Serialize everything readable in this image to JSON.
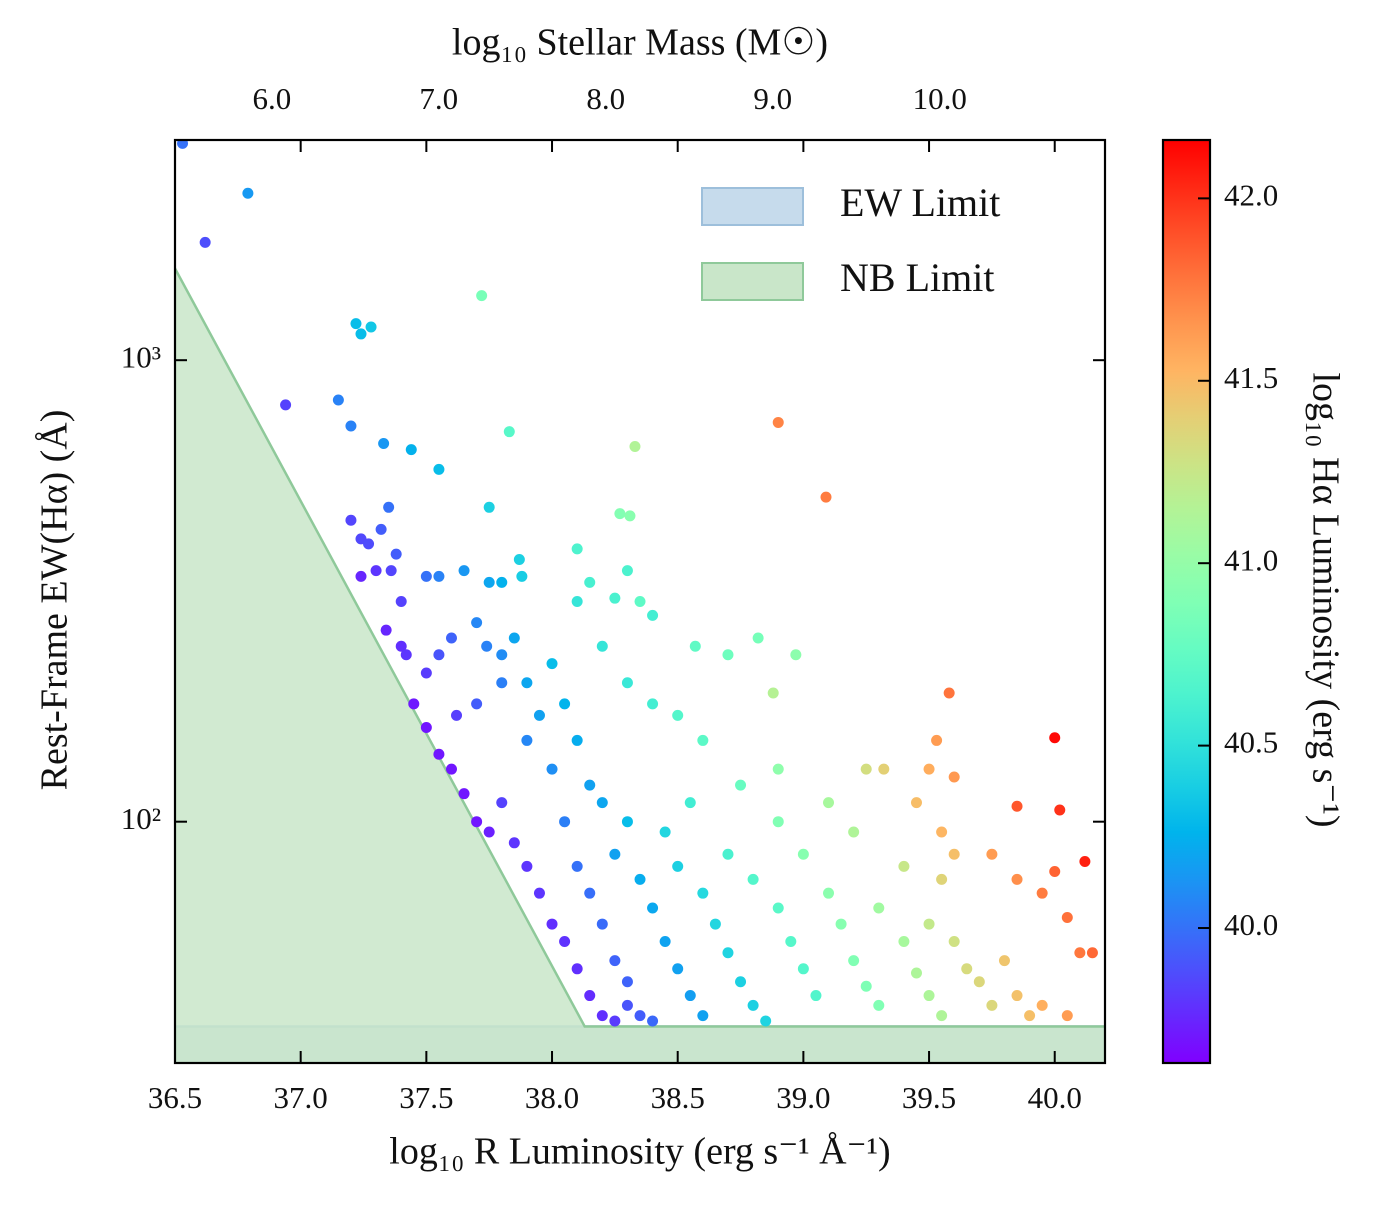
{
  "chart_data": {
    "type": "scatter",
    "title": "log₁₀ Stellar Mass (M☉)",
    "xlabel": "log₁₀ R Luminosity (erg s⁻¹ Å⁻¹)",
    "ylabel": "Rest-Frame EW(Hα) (Å)",
    "xlim": [
      36.5,
      40.2
    ],
    "xticks": [
      36.5,
      {
        "value": 37,
        "label": "37.0"
      },
      37.5,
      {
        "value": 38,
        "label": "38.0"
      },
      38.5,
      {
        "value": 39,
        "label": "39.0"
      },
      39.5,
      {
        "value": 40,
        "label": "40.0"
      }
    ],
    "x2lim": [
      5.42,
      10.99
    ],
    "x2ticks": [
      {
        "value": 6,
        "label": "6.0"
      },
      {
        "value": 7,
        "label": "7.0"
      },
      {
        "value": 8,
        "label": "8.0"
      },
      {
        "value": 9,
        "label": "9.0"
      },
      {
        "value": 10,
        "label": "10.0"
      }
    ],
    "ylim": [
      30,
      3000
    ],
    "yscale": "log",
    "yticks": [
      {
        "value": 100,
        "label": "10²"
      },
      {
        "value": 1000,
        "label": "10³"
      }
    ],
    "grid": false,
    "legend": "upper right",
    "fills": [
      {
        "name": "EW Limit",
        "color": "#c6dbec",
        "edge": "#9dbfdb",
        "x": [
          36.5,
          40.2
        ],
        "y": [
          36,
          36
        ]
      },
      {
        "name": "NB Limit",
        "color": "#c9e6c9",
        "edge": "#8fc99a",
        "x": [
          36.5,
          38.13,
          40.2
        ],
        "y": [
          1580,
          36,
          36
        ]
      }
    ],
    "colormap": "rainbow",
    "colorbar": {
      "label": "log₁₀ Hα Luminosity (erg s⁻¹)",
      "lim": [
        39.63,
        42.16
      ],
      "ticks": [
        {
          "value": 40,
          "label": "40.0"
        },
        40.5,
        {
          "value": 41,
          "label": "41.0"
        },
        41.5,
        {
          "value": 42,
          "label": "42.0"
        }
      ]
    },
    "points": {
      "x": [
        36.53,
        36.62,
        36.79,
        36.94,
        37.22,
        37.24,
        37.28,
        37.15,
        37.2,
        37.33,
        37.44,
        37.55,
        37.72,
        37.83,
        37.75,
        37.2,
        37.24,
        37.27,
        37.32,
        37.35,
        37.38,
        37.24,
        37.3,
        37.36,
        37.4,
        37.34,
        37.4,
        37.42,
        37.5,
        37.55,
        37.65,
        37.75,
        37.8,
        37.87,
        37.88,
        37.6,
        37.7,
        37.74,
        37.8,
        37.85,
        37.55,
        37.5,
        37.45,
        37.5,
        37.55,
        37.6,
        37.62,
        37.7,
        37.8,
        37.65,
        37.7,
        37.75,
        37.8,
        37.85,
        37.9,
        37.95,
        38.0,
        38.05,
        38.1,
        38.15,
        38.2,
        38.25,
        37.95,
        37.9,
        38.0,
        38.05,
        38.1,
        38.15,
        38.2,
        38.25,
        38.3,
        38.3,
        38.35,
        38.4,
        38.1,
        38.15,
        38.2,
        38.3,
        38.25,
        38.35,
        38.4,
        38.45,
        38.5,
        38.55,
        38.6,
        38.5,
        38.45,
        38.55,
        38.6,
        38.65,
        38.7,
        38.75,
        38.8,
        38.85,
        38.7,
        38.8,
        38.9,
        38.95,
        39.0,
        39.05,
        38.9,
        39.0,
        39.1,
        39.15,
        39.2,
        39.25,
        39.3,
        39.3,
        39.4,
        39.45,
        39.5,
        39.55,
        39.5,
        39.6,
        39.65,
        39.7,
        39.75,
        39.8,
        39.85,
        39.9,
        39.95,
        40.05,
        39.4,
        39.55,
        39.6,
        39.75,
        39.85,
        39.95,
        40.0,
        40.05,
        40.1,
        40.15,
        39.85,
        40.02,
        40.12,
        40.0,
        39.53,
        39.58,
        39.5,
        39.6,
        39.45,
        39.55,
        39.32,
        39.25,
        39.1,
        39.2,
        38.9,
        38.75,
        38.6,
        38.5,
        38.4,
        38.3,
        38.2,
        38.1,
        38.3,
        38.4,
        38.57,
        38.7,
        38.82,
        38.97,
        38.88,
        38.9,
        39.09,
        38.33,
        38.27,
        38.31,
        38.1,
        38.15,
        38.25,
        38.35,
        37.9,
        38.0,
        38.05
      ],
      "y": [
        2950,
        1800,
        2300,
        800,
        1200,
        1140,
        1180,
        820,
        720,
        660,
        640,
        580,
        1380,
        700,
        480,
        450,
        410,
        400,
        430,
        480,
        380,
        340,
        350,
        350,
        300,
        260,
        240,
        230,
        340,
        340,
        350,
        330,
        330,
        370,
        340,
        250,
        270,
        240,
        230,
        250,
        230,
        210,
        180,
        160,
        140,
        130,
        170,
        180,
        200,
        115,
        100,
        95,
        110,
        90,
        80,
        70,
        60,
        55,
        48,
        42,
        38,
        37,
        170,
        150,
        130,
        100,
        80,
        70,
        60,
        50,
        45,
        40,
        38,
        37,
        150,
        120,
        110,
        100,
        85,
        75,
        65,
        55,
        48,
        42,
        38,
        80,
        95,
        110,
        70,
        60,
        52,
        45,
        40,
        37,
        85,
        75,
        65,
        55,
        48,
        42,
        100,
        85,
        70,
        60,
        50,
        44,
        40,
        65,
        55,
        47,
        42,
        38,
        60,
        55,
        48,
        45,
        40,
        50,
        42,
        38,
        40,
        38,
        80,
        75,
        85,
        85,
        75,
        70,
        78,
        62,
        52,
        52,
        108,
        106,
        82,
        152,
        150,
        190,
        130,
        125,
        110,
        95,
        130,
        130,
        110,
        95,
        130,
        120,
        150,
        170,
        180,
        200,
        240,
        300,
        350,
        280,
        240,
        230,
        250,
        230,
        190,
        733,
        505,
        650,
        465,
        460,
        390,
        330,
        305,
        300,
        200,
        220,
        180
      ],
      "c": [
        40.0,
        39.88,
        40.15,
        39.84,
        40.3,
        40.3,
        40.35,
        40.06,
        40.06,
        40.14,
        40.25,
        40.3,
        40.86,
        40.7,
        40.4,
        39.85,
        39.86,
        39.87,
        39.93,
        40.0,
        39.93,
        39.75,
        39.8,
        39.85,
        39.84,
        39.75,
        39.78,
        39.8,
        40.0,
        40.06,
        40.14,
        40.2,
        40.25,
        40.4,
        40.38,
        39.95,
        40.08,
        40.06,
        40.1,
        40.2,
        39.9,
        39.82,
        39.71,
        39.7,
        39.7,
        39.7,
        39.83,
        39.93,
        40.05,
        39.7,
        39.7,
        39.73,
        39.84,
        39.8,
        39.8,
        39.8,
        39.78,
        39.79,
        39.78,
        39.77,
        39.78,
        39.82,
        40.18,
        40.08,
        40.11,
        40.05,
        40.0,
        39.99,
        39.98,
        39.95,
        39.95,
        39.9,
        39.93,
        39.97,
        40.23,
        40.18,
        40.2,
        40.3,
        40.18,
        40.23,
        40.21,
        40.19,
        40.18,
        40.17,
        40.18,
        40.4,
        40.43,
        40.59,
        40.45,
        40.43,
        40.42,
        40.4,
        40.4,
        40.42,
        40.63,
        40.68,
        40.71,
        40.69,
        40.68,
        40.67,
        40.9,
        40.93,
        40.95,
        40.93,
        40.9,
        40.89,
        40.9,
        41.06,
        41.09,
        41.12,
        41.12,
        41.13,
        41.23,
        41.29,
        41.33,
        41.35,
        41.35,
        41.45,
        41.47,
        41.48,
        41.55,
        41.63,
        41.25,
        41.37,
        41.48,
        41.63,
        41.68,
        41.75,
        41.84,
        41.79,
        41.77,
        41.82,
        41.88,
        42.0,
        42.06,
        42.13,
        41.63,
        41.78,
        41.56,
        41.64,
        41.49,
        41.52,
        41.39,
        41.31,
        41.09,
        41.13,
        40.97,
        40.78,
        40.72,
        40.68,
        40.6,
        40.55,
        40.53,
        40.53,
        40.64,
        40.6,
        40.74,
        40.81,
        40.85,
        40.96,
        41.16,
        41.72,
        41.75,
        41.14,
        40.91,
        40.94,
        40.65,
        40.62,
        40.63,
        40.73,
        40.2,
        40.3,
        40.26
      ]
    }
  }
}
